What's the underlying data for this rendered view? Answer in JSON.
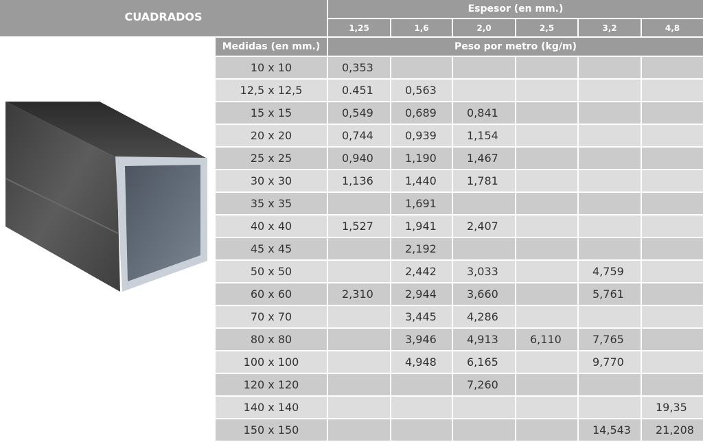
{
  "title": "CUADRADOS",
  "header": {
    "espesor_label": "Espesor (en mm.)",
    "thicknesses": [
      "1,25",
      "1,6",
      "2,0",
      "2,5",
      "3,2",
      "4,8"
    ],
    "medidas_label": "Medidas (en mm.)",
    "peso_label": "Peso por  metro (kg/m)"
  },
  "rows": [
    {
      "size": "10 x 10",
      "values": [
        "0,353",
        "",
        "",
        "",
        "",
        ""
      ]
    },
    {
      "size": "12,5 x 12,5",
      "values": [
        "0.451",
        "0,563",
        "",
        "",
        "",
        ""
      ]
    },
    {
      "size": "15 x 15",
      "values": [
        "0,549",
        "0,689",
        "0,841",
        "",
        "",
        ""
      ]
    },
    {
      "size": "20 x 20",
      "values": [
        "0,744",
        "0,939",
        "1,154",
        "",
        "",
        ""
      ]
    },
    {
      "size": "25 x 25",
      "values": [
        "0,940",
        "1,190",
        "1,467",
        "",
        "",
        ""
      ]
    },
    {
      "size": "30 x 30",
      "values": [
        "1,136",
        "1,440",
        "1,781",
        "",
        "",
        ""
      ]
    },
    {
      "size": "35 x 35",
      "values": [
        "",
        "1,691",
        "",
        "",
        "",
        ""
      ]
    },
    {
      "size": "40 x 40",
      "values": [
        "1,527",
        "1,941",
        "2,407",
        "",
        "",
        ""
      ]
    },
    {
      "size": "45 x 45",
      "values": [
        "",
        "2,192",
        "",
        "",
        "",
        ""
      ]
    },
    {
      "size": "50 x 50",
      "values": [
        "",
        "2,442",
        "3,033",
        "",
        "4,759",
        ""
      ]
    },
    {
      "size": "60 x 60",
      "values": [
        "2,310",
        "2,944",
        "3,660",
        "",
        "5,761",
        ""
      ]
    },
    {
      "size": "70 x 70",
      "values": [
        "",
        "3,445",
        "4,286",
        "",
        "",
        ""
      ]
    },
    {
      "size": "80 x 80",
      "values": [
        "",
        "3,946",
        "4,913",
        "6,110",
        "7,765",
        ""
      ]
    },
    {
      "size": "100 x 100",
      "values": [
        "",
        "4,948",
        "6,165",
        "",
        "9,770",
        ""
      ]
    },
    {
      "size": "120 x 120",
      "values": [
        "",
        "",
        "7,260",
        "",
        "",
        ""
      ]
    },
    {
      "size": "140 x 140",
      "values": [
        "",
        "",
        "",
        "",
        "",
        "19,35"
      ]
    },
    {
      "size": "150 x 150",
      "values": [
        "",
        "",
        "",
        "",
        "14,543",
        "21,208"
      ]
    }
  ],
  "colors": {
    "header": "#9b9b9b",
    "row_dark": "#cbcbcb",
    "row_light": "#dddddd"
  }
}
